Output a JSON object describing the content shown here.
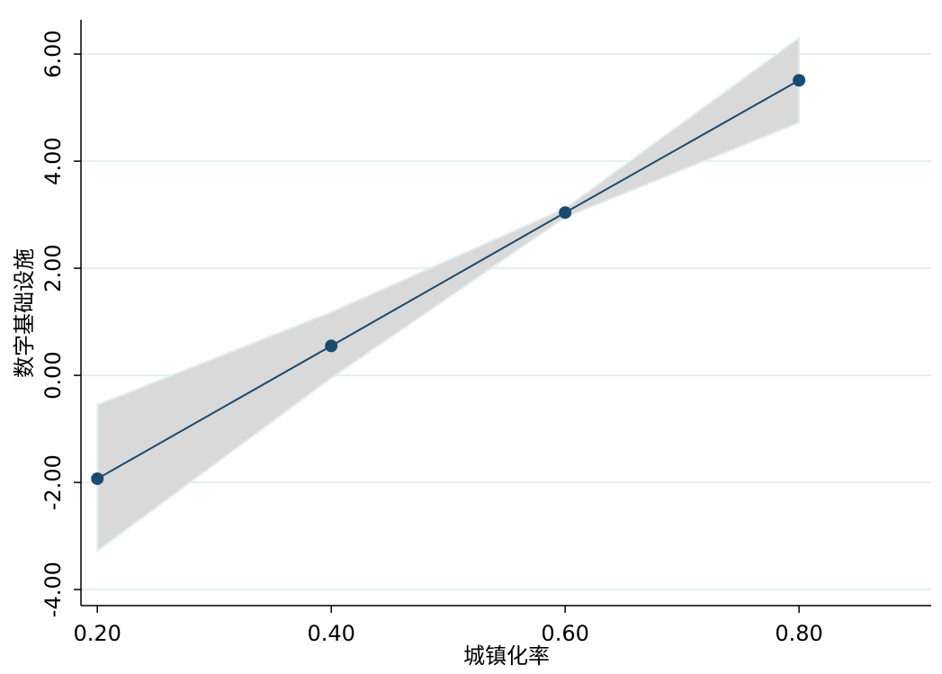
{
  "chart_data": {
    "type": "line",
    "x_label": "城镇化率",
    "y_label": "数字基础设施",
    "x": [
      0.2,
      0.4,
      0.6,
      0.8
    ],
    "series": [
      {
        "color": "#1a4a6e",
        "values": [
          -1.93,
          0.55,
          3.04,
          5.51
        ]
      }
    ],
    "band": {
      "color": "#d9d9d9",
      "lower": [
        -3.28,
        -0.05,
        2.95,
        4.72
      ],
      "upper": [
        -0.55,
        1.18,
        3.12,
        6.3
      ]
    },
    "xlim": [
      0.186,
      0.913
    ],
    "ylim": [
      -4.3,
      6.64
    ],
    "xticks": [
      {
        "value": 0.2,
        "label": "0.20"
      },
      {
        "value": 0.4,
        "label": "0.40"
      },
      {
        "value": 0.6,
        "label": "0.60"
      },
      {
        "value": 0.8,
        "label": "0.80"
      }
    ],
    "yticks": [
      {
        "value": -4,
        "label": "-4.00"
      },
      {
        "value": -2,
        "label": "-2.00"
      },
      {
        "value": 0,
        "label": "0.00"
      },
      {
        "value": 2,
        "label": "2.00"
      },
      {
        "value": 4,
        "label": "4.00"
      },
      {
        "value": 6,
        "label": "6.00"
      }
    ],
    "grid": true
  }
}
